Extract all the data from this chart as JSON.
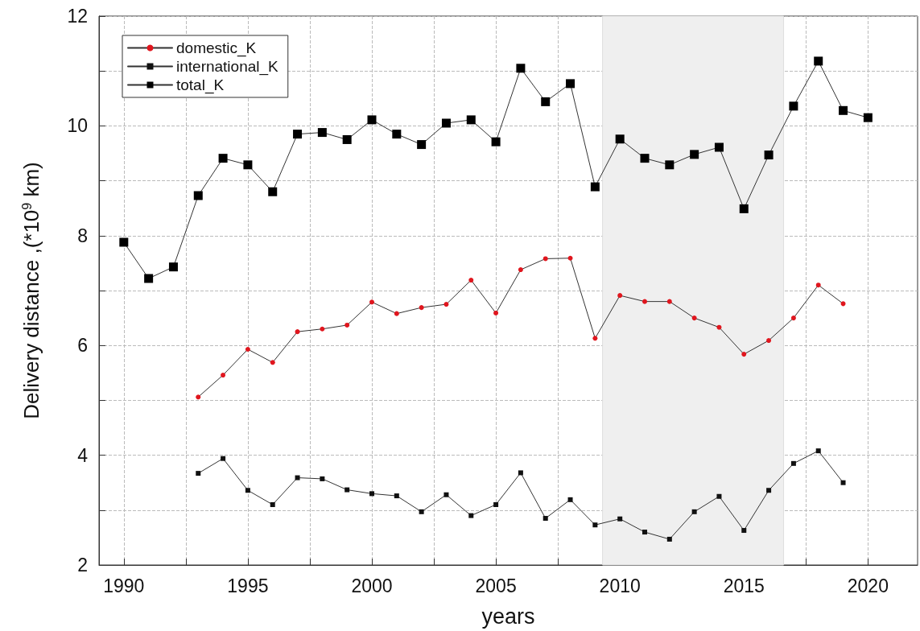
{
  "chart_data": {
    "type": "line",
    "xlabel": "years",
    "ylabel": "Delivery distance ,(*10$^{9}$ km)",
    "x": [
      1990,
      1991,
      1992,
      1993,
      1994,
      1995,
      1996,
      1997,
      1998,
      1999,
      2000,
      2001,
      2002,
      2003,
      2004,
      2005,
      2006,
      2007,
      2008,
      2009,
      2010,
      2011,
      2012,
      2013,
      2014,
      2015,
      2016,
      2017,
      2018,
      2019,
      2020
    ],
    "series": [
      {
        "name": "domestic_K",
        "color": "#e0161e",
        "marker": "circle",
        "values": [
          null,
          null,
          null,
          5.06,
          5.46,
          5.93,
          5.69,
          6.25,
          6.3,
          6.37,
          6.79,
          6.58,
          6.69,
          6.75,
          7.19,
          6.59,
          7.38,
          7.58,
          7.59,
          6.13,
          6.91,
          6.8,
          6.8,
          6.5,
          6.33,
          5.84,
          6.09,
          6.5,
          7.1,
          6.76,
          null
        ]
      },
      {
        "name": "international_K",
        "color": "#111111",
        "marker": "square",
        "values": [
          null,
          null,
          null,
          3.67,
          3.94,
          3.36,
          3.1,
          3.59,
          3.57,
          3.37,
          3.3,
          3.26,
          2.97,
          3.28,
          2.9,
          3.1,
          3.68,
          2.85,
          3.19,
          2.73,
          2.84,
          2.6,
          2.47,
          2.97,
          3.25,
          2.63,
          3.36,
          3.85,
          4.08,
          3.5,
          null
        ]
      },
      {
        "name": "total_K",
        "color": "#000000",
        "marker": "square",
        "values": [
          7.88,
          7.22,
          7.43,
          8.73,
          9.41,
          9.29,
          8.8,
          9.85,
          9.88,
          9.75,
          10.11,
          9.85,
          9.66,
          10.05,
          10.11,
          9.71,
          11.05,
          10.44,
          10.77,
          8.89,
          9.76,
          9.41,
          9.29,
          9.48,
          9.61,
          8.49,
          9.47,
          10.36,
          11.18,
          10.28,
          10.15
        ]
      }
    ],
    "xlim": [
      1989,
      2022
    ],
    "xticks": [
      1990,
      {
        "value": 1992.5,
        "label": null
      },
      1995,
      {
        "value": 1997.5,
        "label": null
      },
      2000,
      {
        "value": 2002.5,
        "label": null
      },
      2005,
      {
        "value": 2007.5,
        "label": null
      },
      2010,
      {
        "value": 2012.5,
        "label": null
      },
      2015,
      {
        "value": 2017.5,
        "label": null
      },
      2020
    ],
    "ylim": [
      2,
      12
    ],
    "yticks": [
      2,
      {
        "value": 3,
        "label": null
      },
      4,
      {
        "value": 5,
        "label": null
      },
      6,
      {
        "value": 7,
        "label": null
      },
      8,
      {
        "value": 9,
        "label": null
      },
      10,
      {
        "value": 11,
        "label": null
      },
      12
    ],
    "bands": [
      {
        "axis": "x",
        "from": 2009.3,
        "to": 2016.6,
        "color": "#efefef"
      }
    ],
    "grid": true,
    "legend": "top left",
    "line_style": "solid"
  }
}
